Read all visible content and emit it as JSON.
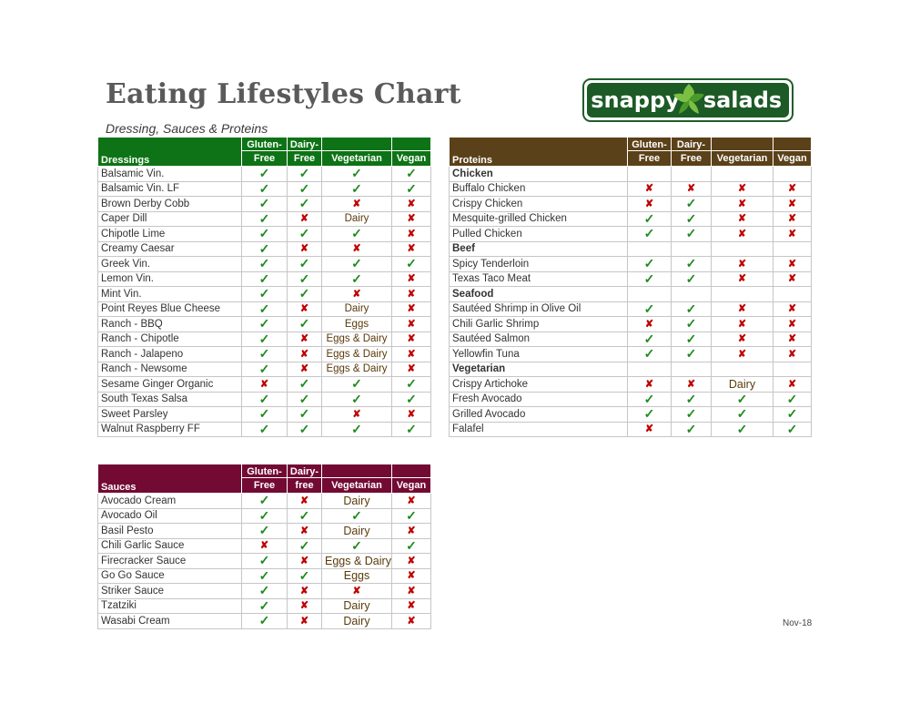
{
  "title": "Eating Lifestyles Chart",
  "subtitle": "Dressing, Sauces & Proteins",
  "logo": {
    "left": "snappy",
    "right": "salads"
  },
  "footer_date": "Nov-18",
  "colors": {
    "dressings": "#0e7316",
    "proteins": "#5b4119",
    "sauces": "#730a33",
    "check": "#1f8a1f",
    "cross": "#c00000"
  },
  "legend": {
    "yes": "✓",
    "no": "✘"
  },
  "dressings": {
    "header": {
      "category": "Dressings",
      "gf_1": "Gluten-",
      "gf_2": "Free",
      "df_1": "Dairy-",
      "df_2": "Free",
      "veg": "Vegetarian",
      "vegan": "Vegan"
    },
    "rows": [
      {
        "name": "Balsamic Vin.",
        "gf": "Y",
        "df": "Y",
        "veg": "Y",
        "vegan": "Y"
      },
      {
        "name": "Balsamic Vin. LF",
        "gf": "Y",
        "df": "Y",
        "veg": "Y",
        "vegan": "Y"
      },
      {
        "name": "Brown Derby Cobb",
        "gf": "Y",
        "df": "Y",
        "veg": "N",
        "vegan": "N"
      },
      {
        "name": "Caper Dill",
        "gf": "Y",
        "df": "N",
        "veg": "Dairy",
        "vegan": "N"
      },
      {
        "name": "Chipotle Lime",
        "gf": "Y",
        "df": "Y",
        "veg": "Y",
        "vegan": "N"
      },
      {
        "name": "Creamy Caesar",
        "gf": "Y",
        "df": "N",
        "veg": "N",
        "vegan": "N"
      },
      {
        "name": "Greek Vin.",
        "gf": "Y",
        "df": "Y",
        "veg": "Y",
        "vegan": "Y"
      },
      {
        "name": "Lemon Vin.",
        "gf": "Y",
        "df": "Y",
        "veg": "Y",
        "vegan": "N"
      },
      {
        "name": "Mint Vin.",
        "gf": "Y",
        "df": "Y",
        "veg": "N",
        "vegan": "N"
      },
      {
        "name": "Point Reyes Blue Cheese",
        "gf": "Y",
        "df": "N",
        "veg": "Dairy",
        "vegan": "N"
      },
      {
        "name": "Ranch - BBQ",
        "gf": "Y",
        "df": "Y",
        "veg": "Eggs",
        "vegan": "N"
      },
      {
        "name": "Ranch - Chipotle",
        "gf": "Y",
        "df": "N",
        "veg": "Eggs & Dairy",
        "vegan": "N"
      },
      {
        "name": "Ranch - Jalapeno",
        "gf": "Y",
        "df": "N",
        "veg": "Eggs & Dairy",
        "vegan": "N"
      },
      {
        "name": "Ranch - Newsome",
        "gf": "Y",
        "df": "N",
        "veg": "Eggs & Dairy",
        "vegan": "N"
      },
      {
        "name": "Sesame Ginger Organic",
        "gf": "N",
        "df": "Y",
        "veg": "Y",
        "vegan": "Y"
      },
      {
        "name": "South Texas Salsa",
        "gf": "Y",
        "df": "Y",
        "veg": "Y",
        "vegan": "Y"
      },
      {
        "name": "Sweet Parsley",
        "gf": "Y",
        "df": "Y",
        "veg": "N",
        "vegan": "N"
      },
      {
        "name": "Walnut Raspberry FF",
        "gf": "Y",
        "df": "Y",
        "veg": "Y",
        "vegan": "Y"
      }
    ]
  },
  "proteins": {
    "header": {
      "category": "Proteins",
      "gf_1": "Gluten-",
      "gf_2": "Free",
      "df_1": "Dairy-",
      "df_2": "Free",
      "veg": "Vegetarian",
      "vegan": "Vegan"
    },
    "rows": [
      {
        "name": "Chicken",
        "group": true
      },
      {
        "name": "Buffalo Chicken",
        "gf": "N",
        "df": "N",
        "veg": "N",
        "vegan": "N"
      },
      {
        "name": "Crispy Chicken",
        "gf": "N",
        "df": "Y",
        "veg": "N",
        "vegan": "N"
      },
      {
        "name": "Mesquite-grilled Chicken",
        "gf": "Y",
        "df": "Y",
        "veg": "N",
        "vegan": "N"
      },
      {
        "name": "Pulled Chicken",
        "gf": "Y",
        "df": "Y",
        "veg": "N",
        "vegan": "N"
      },
      {
        "name": "Beef",
        "group": true
      },
      {
        "name": "Spicy Tenderloin",
        "gf": "Y",
        "df": "Y",
        "veg": "N",
        "vegan": "N"
      },
      {
        "name": "Texas Taco Meat",
        "gf": "Y",
        "df": "Y",
        "veg": "N",
        "vegan": "N"
      },
      {
        "name": "Seafood",
        "group": true
      },
      {
        "name": "Sautéed Shrimp in Olive Oil",
        "gf": "Y",
        "df": "Y",
        "veg": "N",
        "vegan": "N"
      },
      {
        "name": "Chili Garlic Shrimp",
        "gf": "N",
        "df": "Y",
        "veg": "N",
        "vegan": "N"
      },
      {
        "name": "Sautéed Salmon",
        "gf": "Y",
        "df": "Y",
        "veg": "N",
        "vegan": "N"
      },
      {
        "name": "Yellowfin Tuna",
        "gf": "Y",
        "df": "Y",
        "veg": "N",
        "vegan": "N"
      },
      {
        "name": "Vegetarian",
        "group": true
      },
      {
        "name": "Crispy Artichoke",
        "gf": "N",
        "df": "N",
        "veg": "Dairy",
        "vegan": "N",
        "big": true
      },
      {
        "name": "Fresh Avocado",
        "gf": "Y",
        "df": "Y",
        "veg": "Y",
        "vegan": "Y"
      },
      {
        "name": "Grilled Avocado",
        "gf": "Y",
        "df": "Y",
        "veg": "Y",
        "vegan": "Y"
      },
      {
        "name": "Falafel",
        "gf": "N",
        "df": "Y",
        "veg": "Y",
        "vegan": "Y"
      }
    ]
  },
  "sauces": {
    "header": {
      "category": "Sauces",
      "gf_1": "Gluten-",
      "gf_2": "Free",
      "df_1": "Dairy-",
      "df_2": "free",
      "veg": "Vegetarian",
      "vegan": "Vegan"
    },
    "rows": [
      {
        "name": "Avocado Cream",
        "gf": "Y",
        "df": "N",
        "veg": "Dairy",
        "vegan": "N",
        "big": true
      },
      {
        "name": "Avocado Oil",
        "gf": "Y",
        "df": "Y",
        "veg": "Y",
        "vegan": "Y"
      },
      {
        "name": "Basil Pesto",
        "gf": "Y",
        "df": "N",
        "veg": "Dairy",
        "vegan": "N",
        "big": true
      },
      {
        "name": "Chili Garlic Sauce",
        "gf": "N",
        "df": "Y",
        "veg": "Y",
        "vegan": "Y"
      },
      {
        "name": "Firecracker Sauce",
        "gf": "Y",
        "df": "N",
        "veg": "Eggs & Dairy",
        "vegan": "N",
        "big": true
      },
      {
        "name": "Go Go Sauce",
        "gf": "Y",
        "df": "Y",
        "veg": "Eggs",
        "vegan": "N",
        "big": true
      },
      {
        "name": "Striker Sauce",
        "gf": "Y",
        "df": "N",
        "veg": "N",
        "vegan": "N"
      },
      {
        "name": "Tzatziki",
        "gf": "Y",
        "df": "N",
        "veg": "Dairy",
        "vegan": "N",
        "big": true
      },
      {
        "name": "Wasabi Cream",
        "gf": "Y",
        "df": "N",
        "veg": "Dairy",
        "vegan": "N",
        "big": true
      }
    ]
  }
}
